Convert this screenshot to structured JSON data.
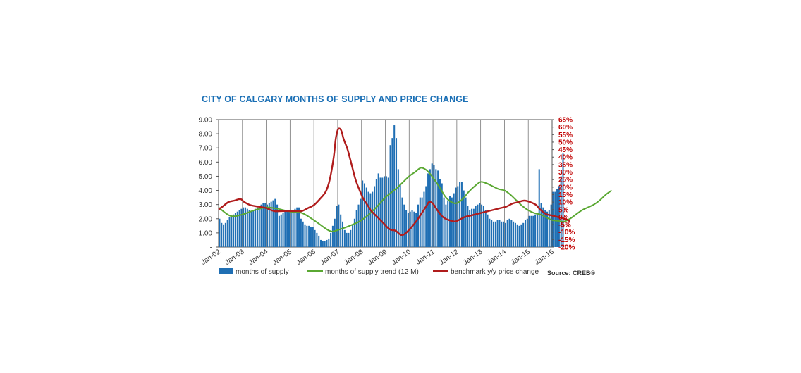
{
  "chart_data": {
    "type": "bar",
    "title": "CITY OF CALGARY MONTHS OF SUPPLY AND PRICE CHANGE",
    "source": "Source: CREB®",
    "x_start": "Jan-02",
    "x_end": "Jan-16",
    "x_tick_labels": [
      "Jan-02",
      "Jan-03",
      "Jan-04",
      "Jan-05",
      "Jan-06",
      "Jan-07",
      "Jan-08",
      "Jan-09",
      "Jan-10",
      "Jan-11",
      "Jan-12",
      "Jan-13",
      "Jan-14",
      "Jan-15",
      "Jan-16"
    ],
    "y_left": {
      "ylim": [
        0,
        9
      ],
      "tick_labels": [
        "-",
        "1.00",
        "2.00",
        "3.00",
        "4.00",
        "5.00",
        "6.00",
        "7.00",
        "8.00",
        "9.00"
      ]
    },
    "y_right": {
      "ylim": [
        -20,
        65
      ],
      "tick_labels": [
        "-20%",
        "-15%",
        "-10%",
        "-5%",
        "0%",
        "5%",
        "10%",
        "15%",
        "20%",
        "25%",
        "30%",
        "35%",
        "40%",
        "45%",
        "50%",
        "55%",
        "60%",
        "65%"
      ],
      "color": "#c00000"
    },
    "series": [
      {
        "name": "months of supply",
        "type": "bar",
        "axis": "left",
        "color": "#1f6fb4",
        "yearly_values": [
          [
            2.0,
            1.7,
            1.6,
            1.7,
            1.9,
            2.1,
            2.2,
            2.3,
            2.4,
            2.5,
            2.6,
            2.7
          ],
          [
            2.8,
            2.8,
            2.7,
            2.6,
            2.5,
            2.6,
            2.7,
            2.8,
            2.9,
            3.0,
            3.1,
            3.1
          ],
          [
            3.0,
            3.1,
            3.2,
            3.3,
            3.4,
            3.0,
            2.2,
            2.3,
            2.4,
            2.5,
            2.6,
            2.6
          ],
          [
            2.6,
            2.6,
            2.7,
            2.8,
            2.8,
            2.0,
            1.8,
            1.6,
            1.5,
            1.5,
            1.4,
            1.4
          ],
          [
            1.2,
            1.0,
            0.8,
            0.5,
            0.4,
            0.4,
            0.5,
            0.6,
            1.0,
            1.5,
            2.0,
            2.9
          ],
          [
            3.0,
            2.3,
            1.8,
            1.2,
            1.0,
            1.0,
            1.2,
            1.6,
            2.0,
            2.6,
            3.0,
            3.4
          ],
          [
            4.7,
            4.5,
            4.2,
            3.9,
            3.8,
            3.9,
            4.3,
            4.8,
            5.2,
            4.9,
            4.9,
            5.0
          ],
          [
            5.0,
            4.9,
            7.2,
            7.7,
            8.6,
            7.7,
            5.5,
            4.4,
            3.5,
            3.0,
            2.6,
            2.4
          ],
          [
            2.5,
            2.6,
            2.5,
            2.4,
            3.0,
            3.5,
            3.5,
            3.9,
            4.3,
            5.2,
            5.5,
            5.9
          ],
          [
            5.8,
            5.5,
            5.4,
            4.8,
            4.5,
            3.5,
            3.0,
            3.3,
            3.6,
            3.5,
            3.8,
            4.2
          ],
          [
            4.3,
            4.6,
            4.6,
            4.0,
            3.5,
            2.9,
            2.6,
            2.7,
            2.7,
            2.9,
            3.0,
            3.1
          ],
          [
            3.0,
            2.9,
            2.6,
            2.3,
            2.0,
            1.9,
            1.8,
            1.8,
            1.9,
            1.9,
            1.8,
            1.8
          ],
          [
            1.7,
            1.9,
            2.0,
            1.9,
            1.8,
            1.7,
            1.6,
            1.5,
            1.6,
            1.7,
            1.9,
            2.0
          ],
          [
            2.2,
            2.2,
            2.2,
            2.3,
            2.4,
            5.5,
            3.1,
            2.8,
            2.6,
            2.5,
            2.6,
            3.0
          ],
          [
            3.9,
            3.9,
            4.1,
            4.3,
            5.0,
            6.6
          ]
        ]
      },
      {
        "name": "months of supply trend (12 M)",
        "type": "line",
        "axis": "left",
        "color": "#5aa832",
        "points": [
          [
            0,
            2.8
          ],
          [
            6,
            2.2
          ],
          [
            12,
            2.3
          ],
          [
            18,
            2.6
          ],
          [
            24,
            2.8
          ],
          [
            30,
            2.7
          ],
          [
            36,
            2.5
          ],
          [
            42,
            2.4
          ],
          [
            48,
            1.9
          ],
          [
            54,
            1.3
          ],
          [
            57,
            1.1
          ],
          [
            60,
            1.2
          ],
          [
            66,
            1.5
          ],
          [
            72,
            1.9
          ],
          [
            78,
            2.6
          ],
          [
            84,
            3.5
          ],
          [
            90,
            4.2
          ],
          [
            96,
            5.0
          ],
          [
            99,
            5.3
          ],
          [
            102,
            5.6
          ],
          [
            105,
            5.4
          ],
          [
            108,
            4.9
          ],
          [
            111,
            4.3
          ],
          [
            114,
            3.6
          ],
          [
            117,
            3.2
          ],
          [
            120,
            3.1
          ],
          [
            123,
            3.4
          ],
          [
            126,
            3.9
          ],
          [
            129,
            4.3
          ],
          [
            132,
            4.6
          ],
          [
            135,
            4.5
          ],
          [
            138,
            4.3
          ],
          [
            141,
            4.1
          ],
          [
            144,
            4.0
          ],
          [
            147,
            3.7
          ],
          [
            150,
            3.3
          ],
          [
            153,
            2.9
          ],
          [
            156,
            2.6
          ],
          [
            159,
            2.4
          ],
          [
            162,
            2.3
          ],
          [
            165,
            2.1
          ],
          [
            168,
            1.9
          ],
          [
            171,
            1.85
          ],
          [
            174,
            1.8
          ],
          [
            177,
            2.0
          ],
          [
            180,
            2.3
          ],
          [
            183,
            2.6
          ],
          [
            186,
            2.8
          ],
          [
            189,
            3.0
          ],
          [
            192,
            3.3
          ],
          [
            195,
            3.7
          ],
          [
            198,
            4.0
          ]
        ]
      },
      {
        "name": "benchmark y/y  price change",
        "type": "line",
        "axis": "right",
        "color": "#b01c1c",
        "points": [
          [
            0,
            5
          ],
          [
            2,
            7
          ],
          [
            5,
            10
          ],
          [
            8,
            11
          ],
          [
            11,
            12
          ],
          [
            13,
            10
          ],
          [
            16,
            8
          ],
          [
            20,
            7
          ],
          [
            24,
            6
          ],
          [
            28,
            4
          ],
          [
            32,
            4
          ],
          [
            36,
            4
          ],
          [
            40,
            4
          ],
          [
            42,
            4
          ],
          [
            45,
            6
          ],
          [
            48,
            8
          ],
          [
            51,
            12
          ],
          [
            54,
            17
          ],
          [
            56,
            25
          ],
          [
            58,
            40
          ],
          [
            59,
            52
          ],
          [
            60,
            58
          ],
          [
            61,
            59
          ],
          [
            62,
            57
          ],
          [
            63,
            52
          ],
          [
            65,
            45
          ],
          [
            67,
            35
          ],
          [
            69,
            25
          ],
          [
            71,
            18
          ],
          [
            73,
            12
          ],
          [
            75,
            8
          ],
          [
            77,
            4
          ],
          [
            80,
            0
          ],
          [
            83,
            -4
          ],
          [
            86,
            -8
          ],
          [
            89,
            -9
          ],
          [
            90,
            -10
          ],
          [
            92,
            -12
          ],
          [
            94,
            -11
          ],
          [
            97,
            -7
          ],
          [
            100,
            -2
          ],
          [
            103,
            4
          ],
          [
            105,
            8
          ],
          [
            106,
            10
          ],
          [
            108,
            9
          ],
          [
            110,
            5
          ],
          [
            113,
            0
          ],
          [
            116,
            -2
          ],
          [
            119,
            -3
          ],
          [
            121,
            -2
          ],
          [
            124,
            0
          ],
          [
            127,
            1
          ],
          [
            130,
            2
          ],
          [
            133,
            3
          ],
          [
            136,
            4
          ],
          [
            139,
            5
          ],
          [
            142,
            6
          ],
          [
            145,
            7
          ],
          [
            148,
            9
          ],
          [
            151,
            10
          ],
          [
            154,
            11
          ],
          [
            157,
            10
          ],
          [
            160,
            8
          ],
          [
            162,
            5
          ],
          [
            165,
            2
          ],
          [
            168,
            1
          ],
          [
            171,
            0
          ],
          [
            174,
            -1
          ],
          [
            176,
            -2
          ],
          [
            177,
            -3
          ]
        ]
      }
    ],
    "legend_position": "bottom",
    "grid": "vertical lines at each January"
  }
}
